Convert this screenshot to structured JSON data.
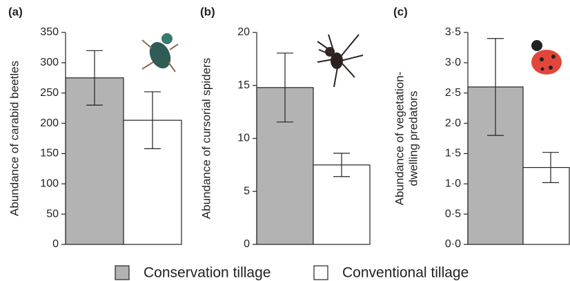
{
  "chart_data": [
    {
      "type": "bar",
      "panel": "(a)",
      "ylabel": [
        "Abundance of carabid beetles"
      ],
      "ylim": [
        0,
        350
      ],
      "yticks": [
        0,
        50,
        100,
        150,
        200,
        250,
        300,
        350
      ],
      "series": [
        {
          "name": "Conservation tillage",
          "color": "#b3b3b3",
          "values": [
            275
          ],
          "errors": [
            45
          ]
        },
        {
          "name": "Conventional tillage",
          "color": "#ffffff",
          "values": [
            205
          ],
          "errors": [
            47
          ]
        }
      ]
    },
    {
      "type": "bar",
      "panel": "(b)",
      "ylabel": [
        "Abundance of cursorial spiders"
      ],
      "ylim": [
        0,
        20
      ],
      "yticks": [
        0,
        5,
        10,
        15,
        20
      ],
      "series": [
        {
          "color": "#b3b3b3",
          "values": [
            14.8
          ],
          "errors": [
            3.25
          ]
        },
        {
          "color": "#ffffff",
          "values": [
            7.5
          ],
          "errors": [
            1.1
          ]
        }
      ]
    },
    {
      "type": "bar",
      "panel": "(c)",
      "ylabel": [
        "Abundance of vegetation-",
        "dwelling predators"
      ],
      "ylim": [
        0,
        3.5
      ],
      "yticks": [
        {
          "value": 0,
          "label": "0·0"
        },
        {
          "value": 0.5,
          "label": "0·5"
        },
        {
          "value": 1,
          "label": "1·0"
        },
        {
          "value": 1.5,
          "label": "1·5"
        },
        {
          "value": 2,
          "label": "2·0"
        },
        {
          "value": 2.5,
          "label": "2·5"
        },
        {
          "value": 3,
          "label": "3·0"
        },
        {
          "value": 3.5,
          "label": "3·5"
        }
      ],
      "series": [
        {
          "color": "#b3b3b3",
          "values": [
            2.6
          ],
          "errors": [
            0.8
          ]
        },
        {
          "color": "#ffffff",
          "values": [
            1.27
          ],
          "errors": [
            0.25
          ]
        }
      ]
    }
  ]
}
